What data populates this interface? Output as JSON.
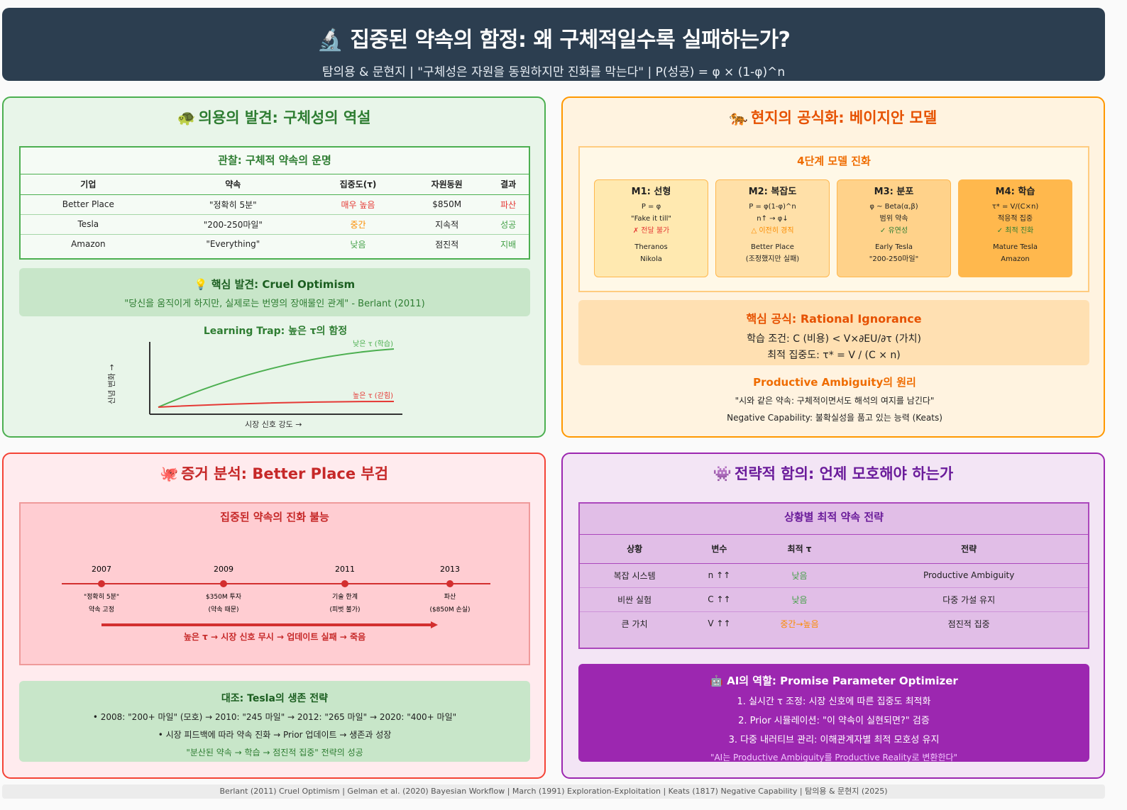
{
  "header": {
    "title": "🔬 집중된 약속의 함정: 왜 구체적일수록 실패하는가?",
    "subtitle": "탐의용 & 문현지 | \"구체성은 자원을 동원하지만 진화를 막는다\" | P(성공) = φ × (1-φ)^n"
  },
  "p1": {
    "icon": "🐢",
    "title": "의용의 발견: 구체성의 역설",
    "table_title": "관찰: 구체적 약속의 운명",
    "headers": [
      "기업",
      "약속",
      "집중도(τ)",
      "자원동원",
      "결과"
    ],
    "rows": [
      {
        "c": "Better Place",
        "p": "\"정확히 5분\"",
        "t": "매우 높음",
        "r": "$850M",
        "o": "파산"
      },
      {
        "c": "Tesla",
        "p": "\"200-250마일\"",
        "t": "중간",
        "r": "지속적",
        "o": "성공"
      },
      {
        "c": "Amazon",
        "p": "\"Everything\"",
        "t": "낮음",
        "r": "점진적",
        "o": "지배"
      }
    ],
    "insight_title": "💡 핵심 발견: Cruel Optimism",
    "insight_quote": "\"당신을 움직이게 하지만, 실제로는 번영의 장애물인 관계\" - Berlant (2011)",
    "trap_title": "Learning Trap: 높은 τ의 함정",
    "trap_ylabel": "신념 변화 →",
    "trap_xlabel": "시장 신호 강도 →",
    "trap_low": "낮은 τ (학습)",
    "trap_high": "높은 τ (갇힘)"
  },
  "p2": {
    "icon": "🐅",
    "title": "현지의 공식화: 베이지안 모델",
    "stages_title": "4단계 모델 진화",
    "stages": [
      {
        "h": "M1: 선형",
        "f": "P = φ",
        "d": "\"Fake it till\"",
        "s": "✗ 전달 불가",
        "e1": "Theranos",
        "e2": "Nikola"
      },
      {
        "h": "M2: 복잡도",
        "f": "P = φ(1-φ)^n",
        "d": "n↑ → φ↓",
        "s": "△ 이전히 경직",
        "e1": "Better Place",
        "e2": "(조정했지만 실패)"
      },
      {
        "h": "M3: 분포",
        "f": "φ ~ Beta(α,β)",
        "d": "범위 약속",
        "s": "✓ 유연성",
        "e1": "Early Tesla",
        "e2": "\"200-250마일\""
      },
      {
        "h": "M4: 학습",
        "f": "τ* = V/(C×n)",
        "d": "적응적 집중",
        "s": "✓ 최적 진화",
        "e1": "Mature Tesla",
        "e2": "Amazon"
      }
    ],
    "formula_title": "핵심 공식: Rational Ignorance",
    "formula_l1": "학습 조건: C (비용) < V×∂EU/∂τ (가치)",
    "formula_l2": "최적 집중도: τ* = V / (C × n)",
    "ambig_title": "Productive Ambiguity의 원리",
    "ambig_l1": "\"시와 같은 약속: 구체적이면서도 해석의 여지를 남긴다\"",
    "ambig_l2": "Negative Capability: 불확실성을 품고 있는 능력 (Keats)"
  },
  "p3": {
    "icon": "🐙",
    "title": "증거 분석: Better Place 부검",
    "timeline_title": "집중된 약속의 진화 불능",
    "events": [
      {
        "year": "2007",
        "l1": "\"정확히 5분\"",
        "l2": "약속 고정"
      },
      {
        "year": "2009",
        "l1": "$350M 투자",
        "l2": "(약속 때문)"
      },
      {
        "year": "2011",
        "l1": "기술 한계",
        "l2": "(피벗 불가)"
      },
      {
        "year": "2013",
        "l1": "파산",
        "l2": "($850M 손실)"
      }
    ],
    "arrow_text": "높은 τ → 시장 신호 무시 → 업데이트 실패 → 죽음",
    "contrast_title": "대조: Tesla의 생존 전략",
    "contrast_l1": "• 2008: \"200+ 마일\" (모호) → 2010: \"245 마일\" → 2012: \"265 마일\" → 2020: \"400+ 마일\"",
    "contrast_l2": "• 시장 피드백에 따라 약속 진화 → Prior 업데이트 → 생존과 성장",
    "contrast_l3": "\"분산된 약속 → 학습 → 점진적 집중\" 전략의 성공"
  },
  "p4": {
    "icon": "👾",
    "title": "전략적 함의: 언제 모호해야 하는가",
    "table_title": "상황별 최적 약속 전략",
    "headers": [
      "상황",
      "변수",
      "최적 τ",
      "전략"
    ],
    "rows": [
      {
        "s": "복잡 시스템",
        "v": "n ↑↑",
        "t": "낮음",
        "st": "Productive Ambiguity"
      },
      {
        "s": "비싼 실험",
        "v": "C ↑↑",
        "t": "낮음",
        "st": "다중 가설 유지"
      },
      {
        "s": "큰 가치",
        "v": "V ↑↑",
        "t": "중간→높음",
        "st": "점진적 집중"
      }
    ],
    "ai_title": "🤖 AI의 역할: Promise Parameter Optimizer",
    "ai_l1": "1. 실시간 τ 조정: 시장 신호에 따른 집중도 최적화",
    "ai_l2": "2. Prior 시뮬레이션: \"이 약속이 실현되면?\" 검증",
    "ai_l3": "3. 다중 내러티브 관리: 이해관계자별 최적 모호성 유지",
    "ai_quote": "\"AI는 Productive Ambiguity를 Productive Reality로 변환한다\""
  },
  "footer": "Berlant (2011) Cruel Optimism | Gelman et al. (2020) Bayesian Workflow | March (1991) Exploration-Exploitation | Keats (1817) Negative Capability | 탐의용 & 문현지 (2025)",
  "colors": {
    "header": "#2c3e50",
    "green": "#4caf50",
    "orange": "#ff9800",
    "red": "#f44336",
    "purple": "#9c27b0"
  }
}
